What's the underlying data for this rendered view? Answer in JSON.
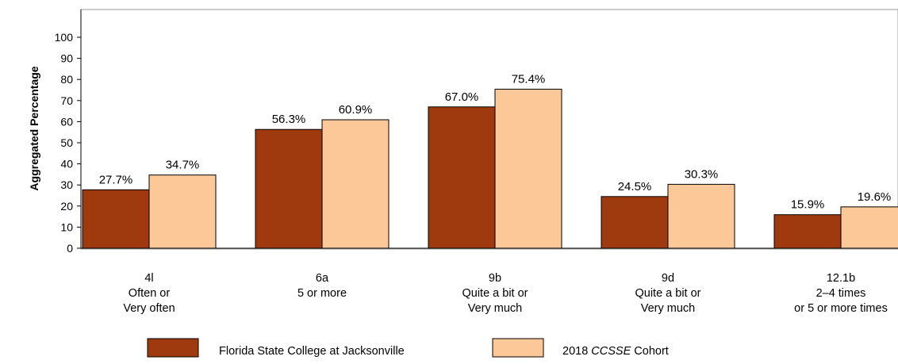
{
  "chart_data": {
    "type": "bar",
    "ylabel": "Aggregated Percentage",
    "ylim": [
      0,
      100
    ],
    "yticks": [
      0,
      10,
      20,
      30,
      40,
      50,
      60,
      70,
      80,
      90,
      100
    ],
    "grid": false,
    "legend_position": "bottom",
    "categories": [
      {
        "id": "4l",
        "lines": [
          "4l",
          "Often or",
          "Very often"
        ]
      },
      {
        "id": "6a",
        "lines": [
          "6a",
          "5 or more"
        ]
      },
      {
        "id": "9b",
        "lines": [
          "9b",
          "Quite a bit or",
          "Very much"
        ]
      },
      {
        "id": "9d",
        "lines": [
          "9d",
          "Quite a bit or",
          "Very much"
        ]
      },
      {
        "id": "12.1b",
        "lines": [
          "12.1b",
          "2–4 times",
          "or 5 or more times"
        ]
      }
    ],
    "series": [
      {
        "name": "Florida State College at Jacksonville",
        "color": "#9E3A0E",
        "values": [
          27.7,
          56.3,
          67.0,
          24.5,
          15.9
        ],
        "labels": [
          "27.7%",
          "56.3%",
          "67.0%",
          "24.5%",
          "15.9%"
        ]
      },
      {
        "name": "2018 CCSSE Cohort",
        "name_prefix": "2018 ",
        "name_italic": "CCSSE",
        "name_suffix": " Cohort",
        "color": "#FDC897",
        "values": [
          34.7,
          60.9,
          75.4,
          30.3,
          19.6
        ],
        "labels": [
          "34.7%",
          "60.9%",
          "75.4%",
          "30.3%",
          "19.6%"
        ]
      }
    ]
  }
}
